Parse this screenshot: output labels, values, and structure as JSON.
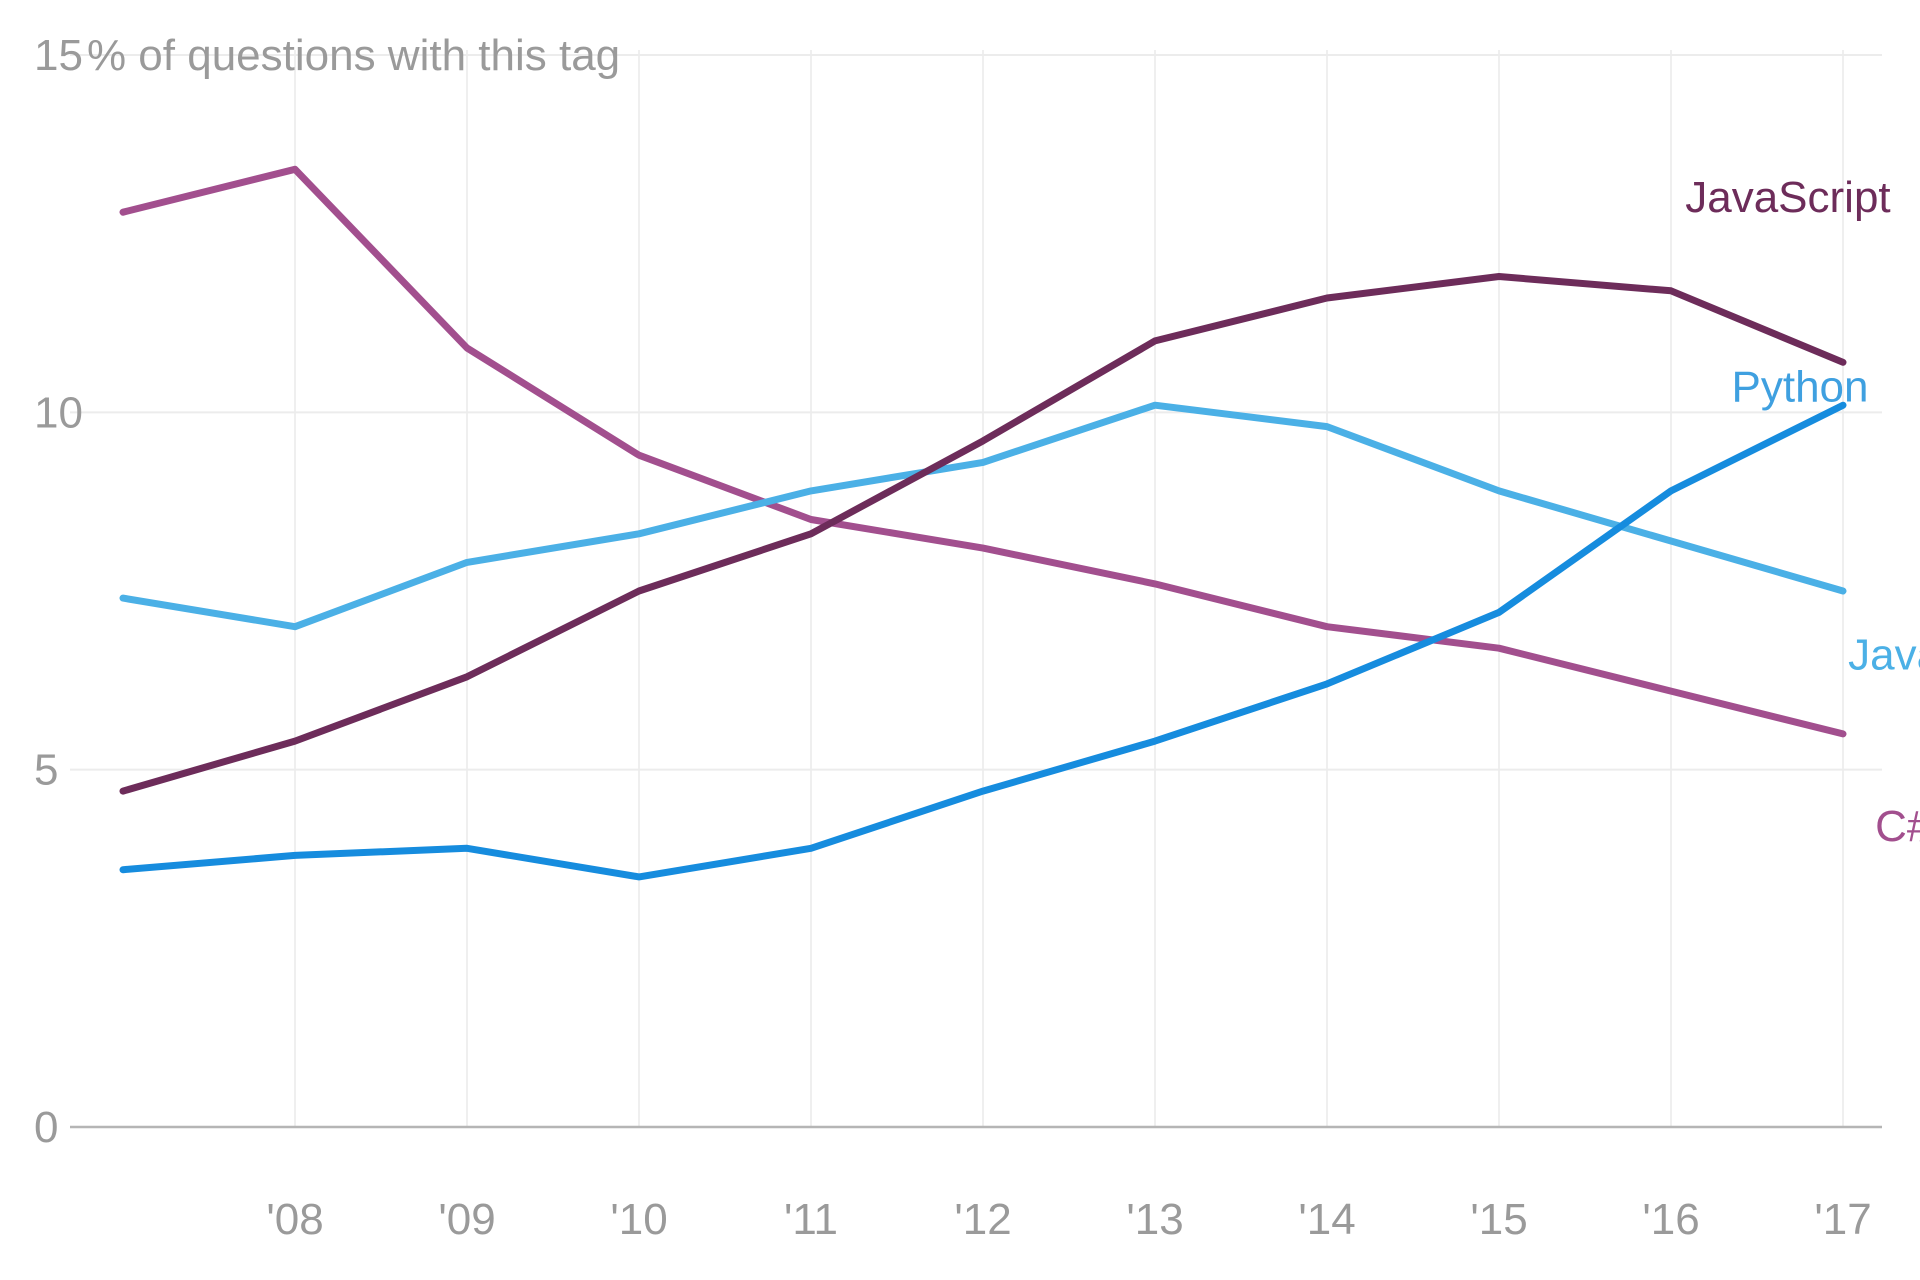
{
  "chart_data": {
    "type": "line",
    "title": "",
    "ylabel": "% of questions with this tag",
    "xlabel": "",
    "x": [
      2007,
      2008,
      2009,
      2010,
      2011,
      2012,
      2013,
      2014,
      2015,
      2016,
      2017
    ],
    "x_tick_labels": [
      "'08",
      "'09",
      "'10",
      "'11",
      "'12",
      "'13",
      "'14",
      "'15",
      "'16",
      "'17"
    ],
    "x_tick_values": [
      2008,
      2009,
      2010,
      2011,
      2012,
      2013,
      2014,
      2015,
      2016,
      2017
    ],
    "xlim": [
      2007,
      2017
    ],
    "ylim": [
      0,
      15
    ],
    "y_ticks": [
      0,
      5,
      10,
      15
    ],
    "y_tick_labels": [
      "0",
      "5",
      "10",
      "15"
    ],
    "grid": true,
    "legend": "inline labels at right",
    "series": [
      {
        "name": "C#",
        "color": "#a24f8e",
        "values": [
          12.8,
          13.4,
          10.9,
          9.4,
          8.5,
          8.1,
          7.6,
          7.0,
          6.7,
          6.1,
          5.5
        ]
      },
      {
        "name": "JavaScript",
        "color": "#6d2c5a",
        "values": [
          4.7,
          5.4,
          6.3,
          7.5,
          8.3,
          9.6,
          11.0,
          11.6,
          11.9,
          11.7,
          10.7
        ]
      },
      {
        "name": "Java",
        "color": "#4bb0e6",
        "values": [
          7.4,
          7.0,
          7.9,
          8.3,
          8.9,
          9.3,
          10.1,
          9.8,
          8.9,
          8.2,
          7.5
        ]
      },
      {
        "name": "Python",
        "color": "#168cde",
        "values": [
          3.6,
          3.8,
          3.9,
          3.5,
          3.9,
          4.7,
          5.4,
          6.2,
          7.2,
          8.9,
          10.1
        ]
      }
    ],
    "labels": [
      {
        "text": "JavaScript",
        "color": "#6d2c5a",
        "x": 2016.68,
        "y": 12.8
      },
      {
        "text": "Python",
        "color": "#3fa0e0",
        "x": 2016.75,
        "y": 10.15
      },
      {
        "text": "Java",
        "color": "#4bb0e6",
        "x": 2017.3,
        "y": 6.4
      },
      {
        "text": "C#",
        "color": "#a24f8e",
        "x": 2017.35,
        "y": 4.0
      }
    ]
  }
}
